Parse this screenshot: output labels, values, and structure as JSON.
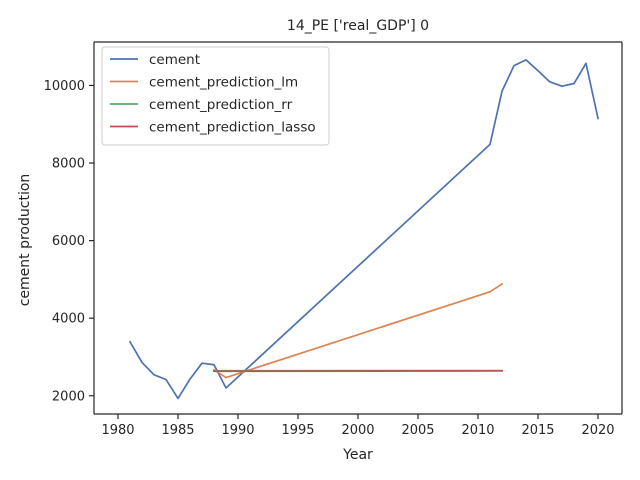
{
  "chart_data": {
    "type": "line",
    "title": "14_PE ['real_GDP'] 0",
    "xlabel": "Year",
    "ylabel": "cement production",
    "xlim": [
      1978,
      2022
    ],
    "ylim": [
      1530,
      11120
    ],
    "xticks": [
      1980,
      1985,
      1990,
      1995,
      2000,
      2005,
      2010,
      2015,
      2020
    ],
    "yticks": [
      2000,
      4000,
      6000,
      8000,
      10000
    ],
    "grid": false,
    "legend_position": "top-left",
    "colors": {
      "cement": "#4c72b0",
      "cement_prediction_lm": "#dd8452",
      "cement_prediction_rr": "#55a868",
      "cement_prediction_lasso": "#c44e52",
      "axis": "#262626"
    },
    "series": [
      {
        "name": "cement",
        "color": "#4c72b0",
        "x": [
          1981,
          1982,
          1983,
          1984,
          1985,
          1986,
          1987,
          1988,
          1989,
          2011,
          2012,
          2013,
          2014,
          2015,
          2016,
          2017,
          2018,
          2019,
          2020
        ],
        "y": [
          3390,
          2860,
          2540,
          2420,
          1930,
          2430,
          2840,
          2800,
          2200,
          8480,
          9850,
          10510,
          10660,
          10380,
          10090,
          9980,
          10050,
          10570,
          9150
        ]
      },
      {
        "name": "cement_prediction_lm",
        "color": "#dd8452",
        "x": [
          1988,
          1989,
          2011,
          2012
        ],
        "y": [
          2670,
          2470,
          4680,
          4880
        ]
      },
      {
        "name": "cement_prediction_rr",
        "color": "#55a868",
        "x": [
          1988,
          2012
        ],
        "y": [
          2645,
          2650
        ]
      },
      {
        "name": "cement_prediction_lasso",
        "color": "#c44e52",
        "x": [
          1988,
          2012
        ],
        "y": [
          2630,
          2640
        ]
      }
    ]
  }
}
